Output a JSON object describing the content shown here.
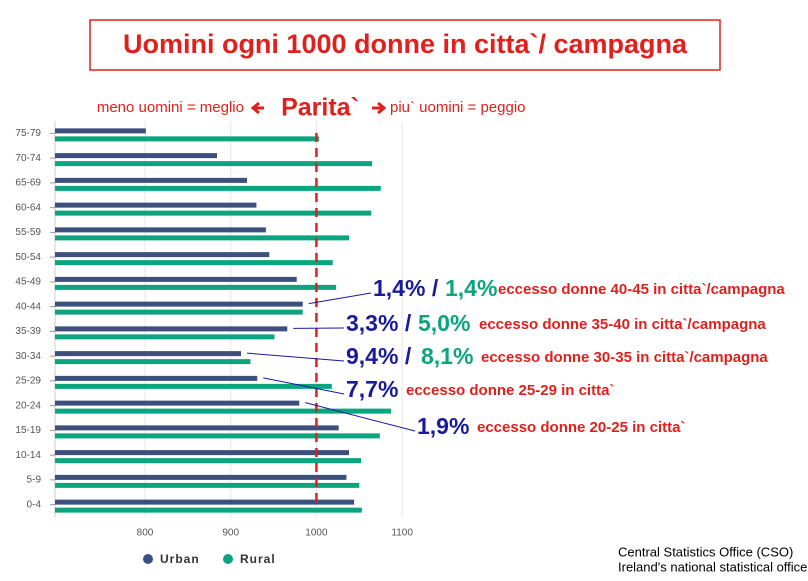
{
  "chart_data": {
    "type": "hbar",
    "title": "Uomini ogni 1000 donne in citta`/ campagna",
    "subtitle_left": "meno uomini = meglio",
    "subtitle_center": "Parita`",
    "subtitle_right": "piu` uomini = peggio",
    "categories": [
      "75-79",
      "70-74",
      "65-69",
      "60-64",
      "55-59",
      "50-54",
      "45-49",
      "40-44",
      "35-39",
      "30-34",
      "25-29",
      "20-24",
      "15-19",
      "10-14",
      "5-9",
      "0-4"
    ],
    "series": [
      {
        "name": "Urban",
        "color": "#3d4f7c",
        "values": [
          801,
          884,
          919,
          930,
          941,
          945,
          977,
          984,
          966,
          912,
          931,
          980,
          1026,
          1038,
          1035,
          1044
        ]
      },
      {
        "name": "Rural",
        "color": "#0aa57f",
        "values": [
          1003,
          1065,
          1075,
          1064,
          1038,
          1019,
          1023,
          984,
          951,
          923,
          1018,
          1087,
          1074,
          1052,
          1050,
          1053
        ]
      }
    ],
    "xlim": [
      695,
      1150
    ],
    "xticks": [
      800,
      900,
      1000,
      1100
    ],
    "grid": true,
    "reference_line": 1000,
    "reference_color": "#e0201c",
    "annotations": [
      {
        "category_index": 7,
        "urban": "1,4% /",
        "rural": "1,4%",
        "text": "eccesso donne 40-45 in citta`/campagna"
      },
      {
        "category_index": 8,
        "urban": "3,3% /",
        "rural": "5,0%",
        "text": "eccesso donne 35-40 in citta`/campagna"
      },
      {
        "category_index": 9,
        "urban": "9,4% /",
        "rural": "8,1%",
        "text": "eccesso donne 30-35 in citta`/campagna"
      },
      {
        "category_index": 10,
        "urban": "7,7%",
        "text": "eccesso donne 25-29 in citta`"
      },
      {
        "category_index": 11,
        "urban": "1,9%",
        "text": "eccesso donne 20-25 in citta`"
      }
    ],
    "source": [
      "Central Statistics Office (CSO)",
      "Ireland's national statistical office"
    ]
  }
}
